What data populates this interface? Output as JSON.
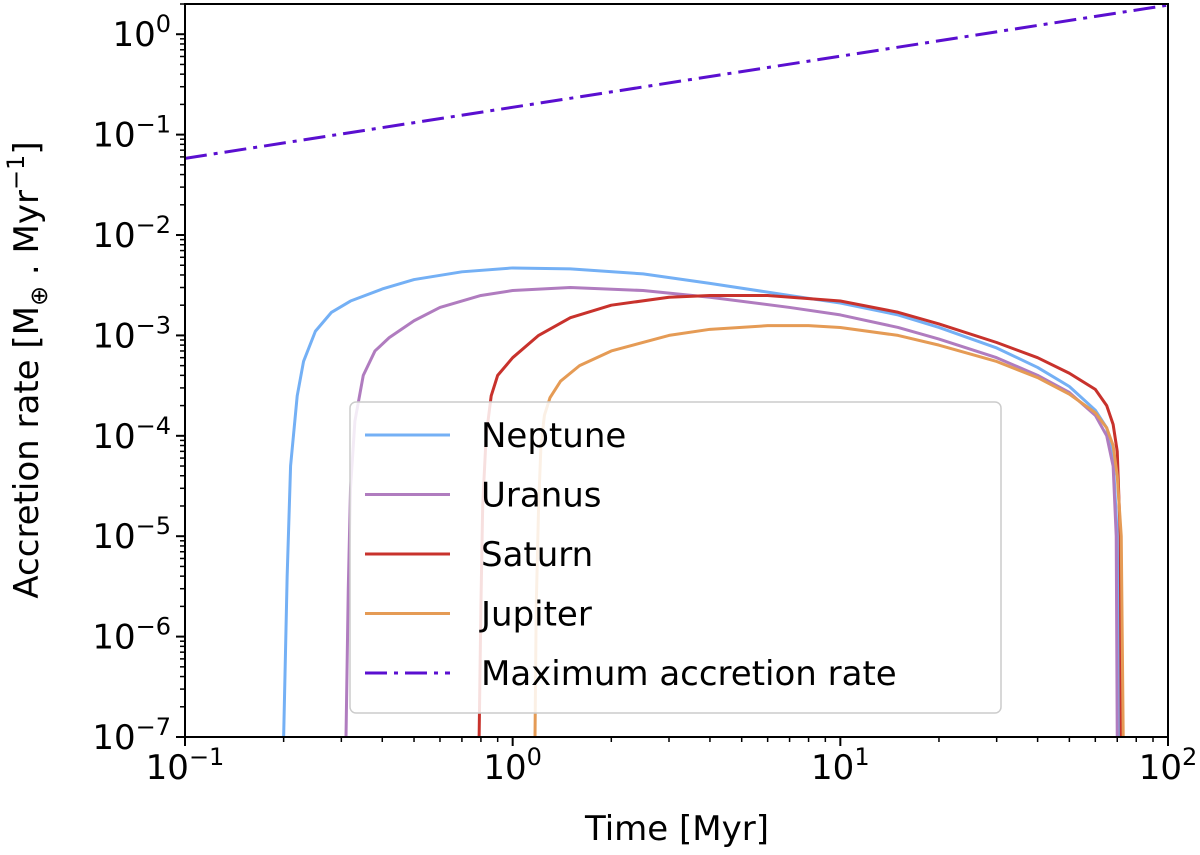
{
  "chart_data": {
    "type": "line",
    "xscale": "log",
    "yscale": "log",
    "xlim": [
      0.1,
      100
    ],
    "ylim": [
      1e-07,
      2
    ],
    "xlabel": "Time [Myr]",
    "ylabel": {
      "prefix": "Accretion rate [M",
      "sub": "⊕",
      "middle": " . Myr",
      "sup": "−1",
      "suffix": "]"
    },
    "xticks": [
      {
        "value": 0.1,
        "base": "10",
        "exp": "−1"
      },
      {
        "value": 1,
        "base": "10",
        "exp": "0"
      },
      {
        "value": 10,
        "base": "10",
        "exp": "1"
      },
      {
        "value": 100,
        "base": "10",
        "exp": "2"
      }
    ],
    "yticks": [
      {
        "value": 1e-07,
        "base": "10",
        "exp": "−7"
      },
      {
        "value": 1e-06,
        "base": "10",
        "exp": "−6"
      },
      {
        "value": 1e-05,
        "base": "10",
        "exp": "−5"
      },
      {
        "value": 0.0001,
        "base": "10",
        "exp": "−4"
      },
      {
        "value": 0.001,
        "base": "10",
        "exp": "−3"
      },
      {
        "value": 0.01,
        "base": "10",
        "exp": "−2"
      },
      {
        "value": 0.1,
        "base": "10",
        "exp": "−1"
      },
      {
        "value": 1,
        "base": "10",
        "exp": "0"
      }
    ],
    "legend": {
      "location": "lower-center"
    },
    "series": [
      {
        "name": "Neptune",
        "color": "#74b0f5",
        "dash": "solid",
        "x": [
          0.2,
          0.205,
          0.21,
          0.22,
          0.23,
          0.25,
          0.28,
          0.32,
          0.4,
          0.5,
          0.7,
          1.0,
          1.5,
          2.5,
          4,
          7,
          10,
          15,
          20,
          30,
          40,
          50,
          60,
          65,
          68,
          70,
          71
        ],
        "y": [
          1e-07,
          4e-06,
          5e-05,
          0.00025,
          0.00055,
          0.0011,
          0.0017,
          0.0022,
          0.0029,
          0.0036,
          0.0043,
          0.0047,
          0.0046,
          0.0041,
          0.0033,
          0.0025,
          0.0021,
          0.0016,
          0.0012,
          0.00075,
          0.00048,
          0.00031,
          0.00018,
          0.00012,
          6e-05,
          1e-05,
          1e-07
        ]
      },
      {
        "name": "Uranus",
        "color": "#b07cbf",
        "dash": "solid",
        "x": [
          0.31,
          0.315,
          0.32,
          0.33,
          0.35,
          0.38,
          0.42,
          0.5,
          0.6,
          0.8,
          1.0,
          1.5,
          2.5,
          4,
          7,
          10,
          15,
          20,
          30,
          40,
          50,
          60,
          65,
          68,
          69.5,
          70
        ],
        "y": [
          1e-07,
          3e-06,
          3e-05,
          0.00014,
          0.0004,
          0.0007,
          0.00095,
          0.0014,
          0.0019,
          0.0025,
          0.0028,
          0.003,
          0.0028,
          0.0024,
          0.0019,
          0.0016,
          0.0012,
          0.00092,
          0.0006,
          0.0004,
          0.00027,
          0.00016,
          0.0001,
          5e-05,
          1e-05,
          1e-07
        ]
      },
      {
        "name": "Saturn",
        "color": "#c8322c",
        "dash": "solid",
        "x": [
          0.79,
          0.8,
          0.81,
          0.83,
          0.86,
          0.9,
          1.0,
          1.2,
          1.5,
          2,
          3,
          4,
          6,
          10,
          15,
          20,
          30,
          40,
          50,
          60,
          65,
          68,
          70,
          71.5,
          72
        ],
        "y": [
          1e-07,
          2e-06,
          2e-05,
          0.0001,
          0.00025,
          0.0004,
          0.0006,
          0.001,
          0.0015,
          0.002,
          0.0024,
          0.0025,
          0.0025,
          0.0022,
          0.0017,
          0.0013,
          0.00085,
          0.0006,
          0.00042,
          0.00029,
          0.0002,
          0.00013,
          7e-05,
          1e-05,
          1e-07
        ]
      },
      {
        "name": "Jupiter",
        "color": "#e59b55",
        "dash": "solid",
        "x": [
          1.17,
          1.18,
          1.2,
          1.22,
          1.25,
          1.3,
          1.4,
          1.6,
          2,
          3,
          4,
          6,
          8,
          10,
          15,
          20,
          30,
          40,
          50,
          60,
          65,
          68,
          70,
          72,
          73
        ],
        "y": [
          1e-07,
          2e-06,
          2e-05,
          8e-05,
          0.00016,
          0.00024,
          0.00035,
          0.0005,
          0.0007,
          0.001,
          0.00115,
          0.00125,
          0.00125,
          0.0012,
          0.001,
          0.0008,
          0.00055,
          0.00038,
          0.00026,
          0.00017,
          0.00012,
          8e-05,
          4e-05,
          1e-05,
          1e-07
        ]
      },
      {
        "name": "Maximum accretion rate",
        "color": "#5a0fd0",
        "dash": "dashdot",
        "x": [
          0.1,
          100
        ],
        "y": [
          0.058,
          1.95
        ]
      }
    ]
  }
}
